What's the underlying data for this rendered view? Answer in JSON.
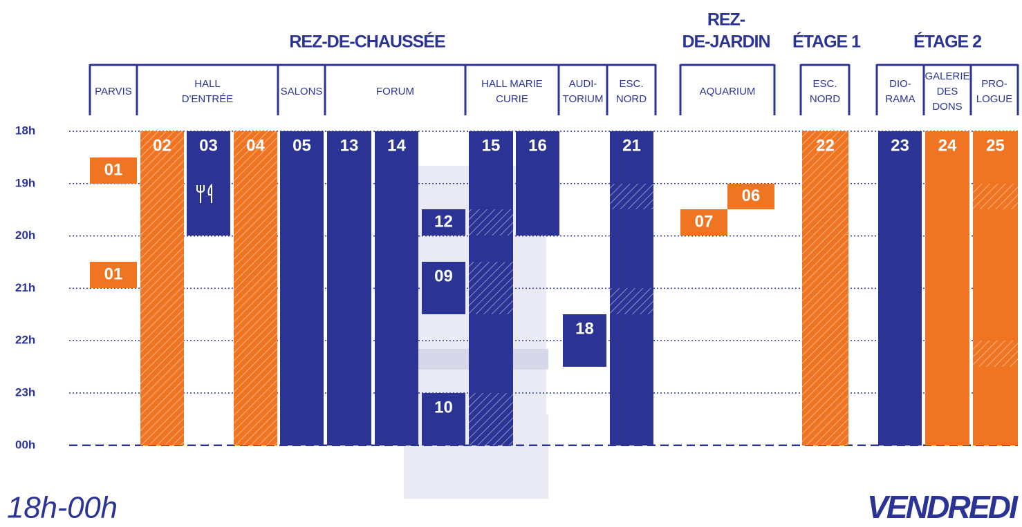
{
  "floors": [
    {
      "label": [
        "REZ-DE-CHAUSSÉE"
      ],
      "rooms": [
        {
          "lines": [
            "PARVIS"
          ]
        },
        {
          "lines": [
            "HALL",
            "D'ENTRÉE"
          ]
        },
        {
          "lines": [
            "SALONS"
          ]
        },
        {
          "lines": [
            "FORUM"
          ]
        },
        {
          "lines": [
            "HALL MARIE",
            "CURIE"
          ]
        },
        {
          "lines": [
            "AUDI-",
            "TORIUM"
          ]
        },
        {
          "lines": [
            "ESC.",
            "NORD"
          ]
        }
      ]
    },
    {
      "label": [
        "REZ-",
        "DE-JARDIN"
      ],
      "rooms": [
        {
          "lines": [
            "AQUARIUM"
          ]
        }
      ]
    },
    {
      "label": [
        "ÉTAGE 1"
      ],
      "rooms": [
        {
          "lines": [
            "ESC.",
            "NORD"
          ]
        }
      ]
    },
    {
      "label": [
        "ÉTAGE 2"
      ],
      "rooms": [
        {
          "lines": [
            "DIO-",
            "RAMA"
          ]
        },
        {
          "lines": [
            "GALERIE",
            "DES",
            "DONS"
          ]
        },
        {
          "lines": [
            "PRO-",
            "LOGUE"
          ]
        }
      ]
    }
  ],
  "hours": [
    "18h",
    "19h",
    "20h",
    "21h",
    "22h",
    "23h",
    "00h"
  ],
  "blocks": [
    {
      "label": "01"
    },
    {
      "label": "01"
    },
    {
      "label": "02"
    },
    {
      "label": "03"
    },
    {
      "label": "04"
    },
    {
      "label": "05"
    },
    {
      "label": "13"
    },
    {
      "label": "14"
    },
    {
      "label": "12"
    },
    {
      "label": "09"
    },
    {
      "label": "10"
    },
    {
      "label": "15"
    },
    {
      "label": "16"
    },
    {
      "label": "18"
    },
    {
      "label": "21"
    },
    {
      "label": "06"
    },
    {
      "label": "07"
    },
    {
      "label": "22"
    },
    {
      "label": "23"
    },
    {
      "label": "24"
    },
    {
      "label": "25"
    }
  ],
  "footer": {
    "time": "18h-00h",
    "day": "VENDREDI"
  }
}
